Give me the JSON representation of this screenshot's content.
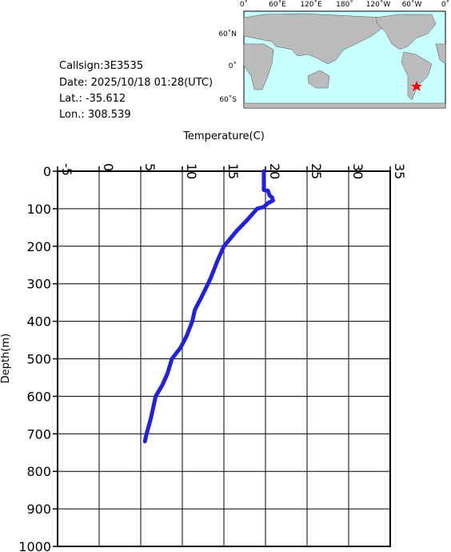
{
  "info": {
    "callsign": "Callsign:3E3535",
    "date": "Date:  2025/10/18 01:28(UTC)",
    "lat": "Lat.:  -35.612",
    "lon": "Lon.:  308.539"
  },
  "map": {
    "lon_labels": [
      "0˚",
      "60˚E",
      "120˚E",
      "180˚",
      "120˚W",
      "60˚W",
      "0˚"
    ],
    "lat_labels": [
      "60˚N",
      "0˚",
      "60˚S"
    ]
  },
  "chart_data": {
    "type": "line",
    "x_label": "Temperature(C)",
    "y_label": "Depth(m)",
    "x": [
      19.8,
      19.8,
      20.3,
      20.5,
      20.8,
      20.9,
      20.3,
      19.8,
      19.0,
      17.8,
      16.5,
      15.0,
      14.2,
      13.5,
      13.1,
      12.2,
      11.5,
      11.2,
      10.5,
      9.8,
      8.75,
      8.2,
      7.6,
      6.8,
      6.5,
      6.2,
      5.7,
      5.5
    ],
    "values": [
      0,
      50,
      52,
      65,
      70,
      78,
      85,
      95,
      100,
      130,
      160,
      200,
      240,
      280,
      300,
      340,
      370,
      400,
      440,
      470,
      500,
      540,
      570,
      600,
      630,
      660,
      700,
      720
    ],
    "color": "#2020e0",
    "xlim": [
      -5,
      35
    ],
    "xticks": [
      -5,
      0,
      5,
      10,
      15,
      20,
      25,
      30,
      35
    ],
    "ylim": [
      0,
      1000
    ],
    "yticks": [
      0,
      100,
      200,
      300,
      400,
      500,
      600,
      700,
      800,
      900,
      1000
    ],
    "grid": true
  }
}
